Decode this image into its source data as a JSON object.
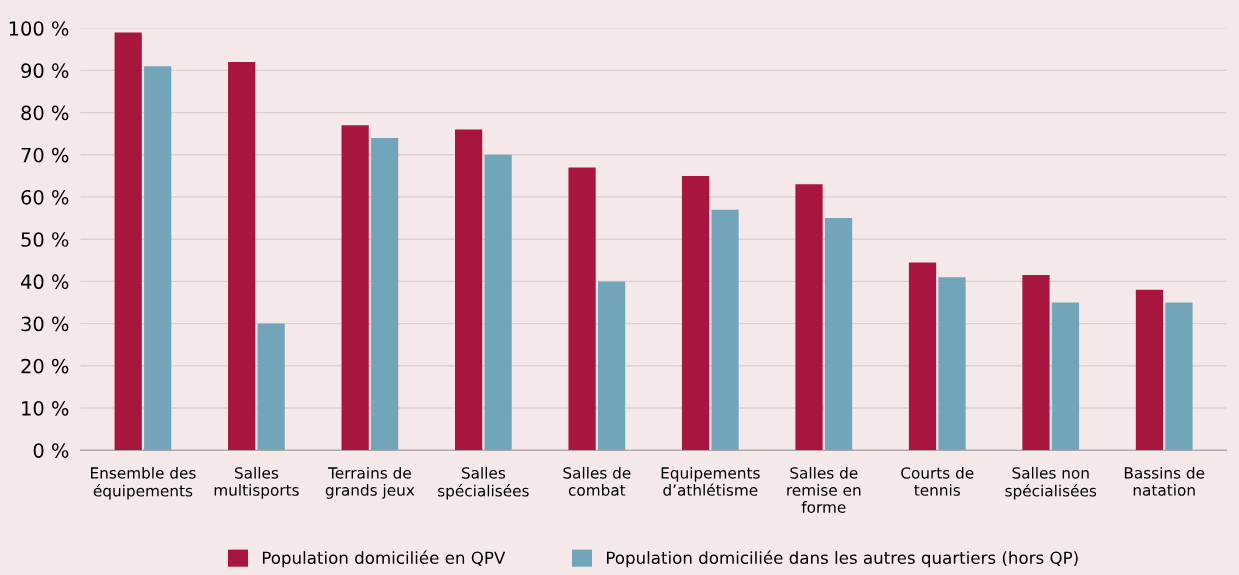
{
  "chart_data": {
    "type": "bar",
    "categories": [
      "Ensemble des\néquipements",
      "Salles\nmultisports",
      "Terrains de\ngrands jeux",
      "Salles\nspécialisées",
      "Salles de\ncombat",
      "Equipements\nd’athlétisme",
      "Salles de\nremise en\nforme",
      "Courts de\ntennis",
      "Salles non\nspécialisées",
      "Bassins de\nnatation"
    ],
    "series": [
      {
        "name": "Population domiciliée en QPV",
        "color": "#a8163f",
        "values": [
          99,
          92,
          77,
          76,
          67,
          65,
          63,
          44.5,
          41.5,
          38
        ]
      },
      {
        "name": "Population domiciliée dans les autres quartiers (hors QP)",
        "color": "#72a5b9",
        "values": [
          91,
          30,
          74,
          70,
          40,
          57,
          55,
          41,
          35,
          35
        ]
      }
    ],
    "ylim": [
      0,
      100
    ],
    "yticks": [
      {
        "value": 0,
        "label": "0 %"
      },
      {
        "value": 10,
        "label": "10 %"
      },
      {
        "value": 20,
        "label": "20 %"
      },
      {
        "value": 30,
        "label": "30 %"
      },
      {
        "value": 40,
        "label": "40 %"
      },
      {
        "value": 50,
        "label": "50 %"
      },
      {
        "value": 60,
        "label": "60 %"
      },
      {
        "value": 70,
        "label": "70 %"
      },
      {
        "value": 80,
        "label": "80 %"
      },
      {
        "value": 90,
        "label": "90 %"
      },
      {
        "value": 100,
        "label": "100 %"
      }
    ],
    "grid": "y",
    "legend": "bottom"
  }
}
